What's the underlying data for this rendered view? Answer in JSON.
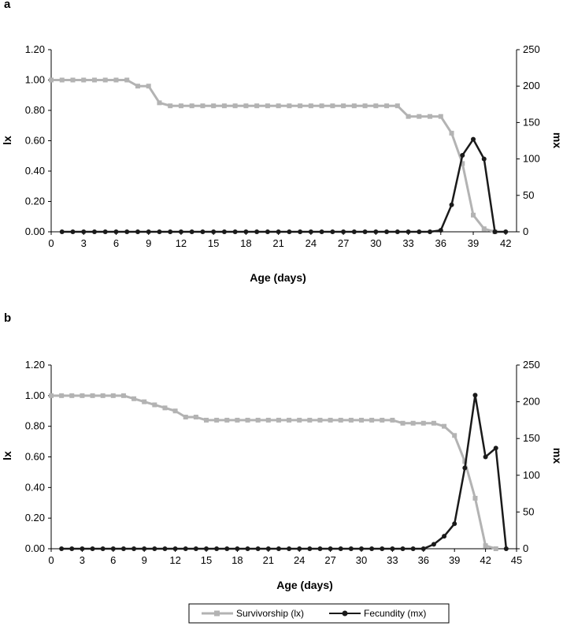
{
  "legend": {
    "survivorship_label": "Survivorship (lx)",
    "fecundity_label": "Fecundity (mx)"
  },
  "colors": {
    "survivorship": "#b3b3b3",
    "fecundity": "#1a1a1a",
    "axis": "#000000"
  },
  "chart_data": [
    {
      "panel": "a",
      "type": "line",
      "xlabel": "Age (days)",
      "ylabel": "lx",
      "y2label": "mx",
      "xlim": [
        0,
        43
      ],
      "xticks": [
        0,
        3,
        6,
        9,
        12,
        15,
        18,
        21,
        24,
        27,
        30,
        33,
        36,
        39,
        42
      ],
      "ylim": [
        0,
        1.2
      ],
      "yticks": [
        "0.00",
        "0.20",
        "0.40",
        "0.60",
        "0.80",
        "1.00",
        "1.20"
      ],
      "y2lim": [
        0,
        250
      ],
      "y2ticks": [
        "0",
        "50",
        "100",
        "150",
        "200",
        "250"
      ],
      "series": [
        {
          "name": "Survivorship (lx)",
          "axis": "left",
          "marker": "square",
          "x": [
            0,
            1,
            2,
            3,
            4,
            5,
            6,
            7,
            8,
            9,
            10,
            11,
            12,
            13,
            14,
            15,
            16,
            17,
            18,
            19,
            20,
            21,
            22,
            23,
            24,
            25,
            26,
            27,
            28,
            29,
            30,
            31,
            32,
            33,
            34,
            35,
            36,
            37,
            38,
            39,
            40,
            41
          ],
          "y": [
            1,
            1,
            1,
            1,
            1,
            1,
            1,
            1,
            0.96,
            0.96,
            0.85,
            0.83,
            0.83,
            0.83,
            0.83,
            0.83,
            0.83,
            0.83,
            0.83,
            0.83,
            0.83,
            0.83,
            0.83,
            0.83,
            0.83,
            0.83,
            0.83,
            0.83,
            0.83,
            0.83,
            0.83,
            0.83,
            0.83,
            0.76,
            0.76,
            0.76,
            0.76,
            0.65,
            0.45,
            0.11,
            0.02,
            0
          ]
        },
        {
          "name": "Fecundity (mx)",
          "axis": "right",
          "marker": "circle",
          "x": [
            1,
            2,
            3,
            4,
            5,
            6,
            7,
            8,
            9,
            10,
            11,
            12,
            13,
            14,
            15,
            16,
            17,
            18,
            19,
            20,
            21,
            22,
            23,
            24,
            25,
            26,
            27,
            28,
            29,
            30,
            31,
            32,
            33,
            34,
            35,
            36,
            37,
            38,
            39,
            40,
            41,
            42
          ],
          "y": [
            0,
            0,
            0,
            0,
            0,
            0,
            0,
            0,
            0,
            0,
            0,
            0,
            0,
            0,
            0,
            0,
            0,
            0,
            0,
            0,
            0,
            0,
            0,
            0,
            0,
            0,
            0,
            0,
            0,
            0,
            0,
            0,
            0,
            0,
            0,
            2,
            37,
            105,
            127,
            100,
            0,
            0
          ]
        }
      ]
    },
    {
      "panel": "b",
      "type": "line",
      "xlabel": "Age (days)",
      "ylabel": "lx",
      "y2label": "mx",
      "xlim": [
        0,
        45
      ],
      "xticks": [
        0,
        3,
        6,
        9,
        12,
        15,
        18,
        21,
        24,
        27,
        30,
        33,
        36,
        39,
        42,
        45
      ],
      "ylim": [
        0,
        1.2
      ],
      "yticks": [
        "0.00",
        "0.20",
        "0.40",
        "0.60",
        "0.80",
        "1.00",
        "1.20"
      ],
      "y2lim": [
        0,
        250
      ],
      "y2ticks": [
        "0",
        "50",
        "100",
        "150",
        "200",
        "250"
      ],
      "series": [
        {
          "name": "Survivorship (lx)",
          "axis": "left",
          "marker": "square",
          "x": [
            0,
            1,
            2,
            3,
            4,
            5,
            6,
            7,
            8,
            9,
            10,
            11,
            12,
            13,
            14,
            15,
            16,
            17,
            18,
            19,
            20,
            21,
            22,
            23,
            24,
            25,
            26,
            27,
            28,
            29,
            30,
            31,
            32,
            33,
            34,
            35,
            36,
            37,
            38,
            39,
            40,
            41,
            42,
            43
          ],
          "y": [
            1,
            1,
            1,
            1,
            1,
            1,
            1,
            1,
            0.98,
            0.96,
            0.94,
            0.92,
            0.9,
            0.86,
            0.86,
            0.84,
            0.84,
            0.84,
            0.84,
            0.84,
            0.84,
            0.84,
            0.84,
            0.84,
            0.84,
            0.84,
            0.84,
            0.84,
            0.84,
            0.84,
            0.84,
            0.84,
            0.84,
            0.84,
            0.82,
            0.82,
            0.82,
            0.82,
            0.8,
            0.74,
            0.57,
            0.33,
            0.02,
            0
          ]
        },
        {
          "name": "Fecundity (mx)",
          "axis": "right",
          "marker": "circle",
          "x": [
            1,
            2,
            3,
            4,
            5,
            6,
            7,
            8,
            9,
            10,
            11,
            12,
            13,
            14,
            15,
            16,
            17,
            18,
            19,
            20,
            21,
            22,
            23,
            24,
            25,
            26,
            27,
            28,
            29,
            30,
            31,
            32,
            33,
            34,
            35,
            36,
            37,
            38,
            39,
            40,
            41,
            42,
            43,
            44
          ],
          "y": [
            0,
            0,
            0,
            0,
            0,
            0,
            0,
            0,
            0,
            0,
            0,
            0,
            0,
            0,
            0,
            0,
            0,
            0,
            0,
            0,
            0,
            0,
            0,
            0,
            0,
            0,
            0,
            0,
            0,
            0,
            0,
            0,
            0,
            0,
            0,
            0,
            6,
            17,
            34,
            110,
            209,
            125,
            137,
            0
          ]
        }
      ]
    }
  ]
}
